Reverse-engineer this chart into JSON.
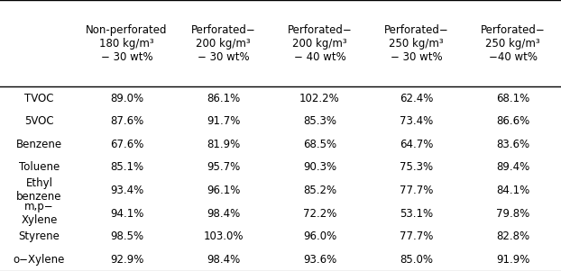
{
  "col_headers": [
    "Non-perforated\n180 kg/m³\n− 30 wt%",
    "Perforated−\n200 kg/m³\n− 30 wt%",
    "Perforated−\n200 kg/m³\n− 40 wt%",
    "Perforated−\n250 kg/m³\n− 30 wt%",
    "Perforated−\n250 kg/m³\n−40 wt%"
  ],
  "row_headers": [
    "TVOC",
    "5VOC",
    "Benzene",
    "Toluene",
    "Ethyl\nbenzene",
    "m,p−\nXylene",
    "Styrene",
    "o−Xylene"
  ],
  "table_data": [
    [
      "89.0%",
      "86.1%",
      "102.2%",
      "62.4%",
      "68.1%"
    ],
    [
      "87.6%",
      "91.7%",
      "85.3%",
      "73.4%",
      "86.6%"
    ],
    [
      "67.6%",
      "81.9%",
      "68.5%",
      "64.7%",
      "83.6%"
    ],
    [
      "85.1%",
      "95.7%",
      "90.3%",
      "75.3%",
      "89.4%"
    ],
    [
      "93.4%",
      "96.1%",
      "85.2%",
      "77.7%",
      "84.1%"
    ],
    [
      "94.1%",
      "98.4%",
      "72.2%",
      "53.1%",
      "79.8%"
    ],
    [
      "98.5%",
      "103.0%",
      "96.0%",
      "77.7%",
      "82.8%"
    ],
    [
      "92.9%",
      "98.4%",
      "93.6%",
      "85.0%",
      "91.9%"
    ]
  ],
  "font_size": 8.5,
  "header_font_size": 8.5,
  "background_color": "#ffffff",
  "line_color": "#000000"
}
